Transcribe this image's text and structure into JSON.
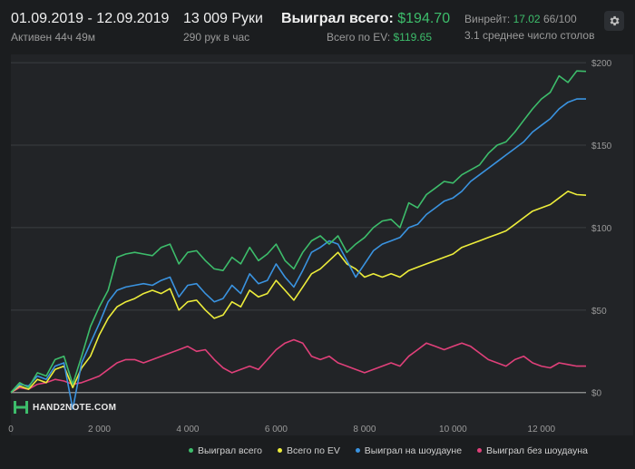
{
  "header": {
    "date_range": "01.09.2019 - 12.09.2019",
    "active_time": "Активен 44ч 49м",
    "hands": "13 009 Руки",
    "hands_per_hour": "290 рук в час",
    "won_total_label": "Выиграл всего:",
    "won_total_value": "$194.70",
    "ev_total_label": "Всего по EV:",
    "ev_total_value": "$119.65",
    "winrate_label": "Винрейт:",
    "winrate_value": "17.02",
    "winrate_hands": "66/100",
    "avg_tables": "3.1 среднее число столов"
  },
  "logo": {
    "text": "HAND2NOTE.COM"
  },
  "colors": {
    "green": "#3dbd6b",
    "yellow": "#eded3b",
    "blue": "#3a93e0",
    "pink": "#e0407a",
    "background": "#1b1d1f",
    "panel": "#222427"
  },
  "icons": {
    "settings": "gear-icon"
  },
  "chart_data": {
    "type": "line",
    "xlim": [
      0,
      13009
    ],
    "ylim": [
      -15,
      205
    ],
    "x_ticks": [
      0,
      2000,
      4000,
      6000,
      8000,
      10000,
      12000
    ],
    "x_tick_labels": [
      "0",
      "2 000",
      "4 000",
      "6 000",
      "8 000",
      "10 000",
      "12 000"
    ],
    "y_ticks": [
      0,
      50,
      100,
      150,
      200
    ],
    "y_tick_labels": [
      "$0",
      "$50",
      "$100",
      "$150",
      "$200"
    ],
    "grid": true,
    "legend_position": "bottom-right",
    "series": [
      {
        "name": "Выиграл всего",
        "color": "#3dbd6b",
        "points": [
          [
            0,
            0
          ],
          [
            200,
            6
          ],
          [
            400,
            3
          ],
          [
            600,
            12
          ],
          [
            800,
            10
          ],
          [
            1000,
            20
          ],
          [
            1200,
            22
          ],
          [
            1400,
            5
          ],
          [
            1600,
            22
          ],
          [
            1800,
            40
          ],
          [
            2000,
            52
          ],
          [
            2200,
            62
          ],
          [
            2400,
            82
          ],
          [
            2600,
            84
          ],
          [
            2800,
            85
          ],
          [
            3000,
            84
          ],
          [
            3200,
            83
          ],
          [
            3400,
            88
          ],
          [
            3600,
            90
          ],
          [
            3800,
            78
          ],
          [
            4000,
            85
          ],
          [
            4200,
            86
          ],
          [
            4400,
            80
          ],
          [
            4600,
            75
          ],
          [
            4800,
            74
          ],
          [
            5000,
            82
          ],
          [
            5200,
            78
          ],
          [
            5400,
            88
          ],
          [
            5600,
            80
          ],
          [
            5800,
            84
          ],
          [
            6000,
            90
          ],
          [
            6200,
            80
          ],
          [
            6400,
            75
          ],
          [
            6600,
            85
          ],
          [
            6800,
            92
          ],
          [
            7000,
            95
          ],
          [
            7200,
            90
          ],
          [
            7400,
            95
          ],
          [
            7600,
            85
          ],
          [
            7800,
            90
          ],
          [
            8000,
            94
          ],
          [
            8200,
            100
          ],
          [
            8400,
            104
          ],
          [
            8600,
            105
          ],
          [
            8800,
            100
          ],
          [
            9000,
            115
          ],
          [
            9200,
            112
          ],
          [
            9400,
            120
          ],
          [
            9600,
            124
          ],
          [
            9800,
            128
          ],
          [
            10000,
            127
          ],
          [
            10200,
            132
          ],
          [
            10400,
            135
          ],
          [
            10600,
            138
          ],
          [
            10800,
            145
          ],
          [
            11000,
            150
          ],
          [
            11200,
            152
          ],
          [
            11400,
            158
          ],
          [
            11600,
            165
          ],
          [
            11800,
            172
          ],
          [
            12000,
            178
          ],
          [
            12200,
            182
          ],
          [
            12400,
            192
          ],
          [
            12600,
            188
          ],
          [
            12800,
            195
          ],
          [
            13009,
            194.7
          ]
        ]
      },
      {
        "name": "Всего по EV",
        "color": "#eded3b",
        "points": [
          [
            0,
            0
          ],
          [
            200,
            4
          ],
          [
            400,
            2
          ],
          [
            600,
            8
          ],
          [
            800,
            6
          ],
          [
            1000,
            14
          ],
          [
            1200,
            16
          ],
          [
            1400,
            3
          ],
          [
            1600,
            15
          ],
          [
            1800,
            22
          ],
          [
            2000,
            35
          ],
          [
            2200,
            45
          ],
          [
            2400,
            52
          ],
          [
            2600,
            55
          ],
          [
            2800,
            57
          ],
          [
            3000,
            60
          ],
          [
            3200,
            62
          ],
          [
            3400,
            60
          ],
          [
            3600,
            63
          ],
          [
            3800,
            50
          ],
          [
            4000,
            55
          ],
          [
            4200,
            56
          ],
          [
            4400,
            50
          ],
          [
            4600,
            45
          ],
          [
            4800,
            47
          ],
          [
            5000,
            55
          ],
          [
            5200,
            52
          ],
          [
            5400,
            62
          ],
          [
            5600,
            58
          ],
          [
            5800,
            60
          ],
          [
            6000,
            68
          ],
          [
            6200,
            62
          ],
          [
            6400,
            56
          ],
          [
            6600,
            64
          ],
          [
            6800,
            72
          ],
          [
            7000,
            75
          ],
          [
            7200,
            80
          ],
          [
            7400,
            85
          ],
          [
            7600,
            78
          ],
          [
            7800,
            75
          ],
          [
            8000,
            70
          ],
          [
            8200,
            72
          ],
          [
            8400,
            70
          ],
          [
            8600,
            72
          ],
          [
            8800,
            70
          ],
          [
            9000,
            74
          ],
          [
            9200,
            76
          ],
          [
            9400,
            78
          ],
          [
            9600,
            80
          ],
          [
            9800,
            82
          ],
          [
            10000,
            84
          ],
          [
            10200,
            88
          ],
          [
            10400,
            90
          ],
          [
            10600,
            92
          ],
          [
            10800,
            94
          ],
          [
            11000,
            96
          ],
          [
            11200,
            98
          ],
          [
            11400,
            102
          ],
          [
            11600,
            106
          ],
          [
            11800,
            110
          ],
          [
            12000,
            112
          ],
          [
            12200,
            114
          ],
          [
            12400,
            118
          ],
          [
            12600,
            122
          ],
          [
            12800,
            120
          ],
          [
            13009,
            119.65
          ]
        ]
      },
      {
        "name": "Выиграл на шоудауне",
        "color": "#3a93e0",
        "points": [
          [
            0,
            0
          ],
          [
            200,
            5
          ],
          [
            400,
            4
          ],
          [
            600,
            10
          ],
          [
            800,
            8
          ],
          [
            1000,
            16
          ],
          [
            1200,
            18
          ],
          [
            1400,
            -10
          ],
          [
            1600,
            18
          ],
          [
            1800,
            30
          ],
          [
            2000,
            42
          ],
          [
            2200,
            55
          ],
          [
            2400,
            62
          ],
          [
            2600,
            64
          ],
          [
            2800,
            65
          ],
          [
            3000,
            66
          ],
          [
            3200,
            65
          ],
          [
            3400,
            68
          ],
          [
            3600,
            70
          ],
          [
            3800,
            58
          ],
          [
            4000,
            65
          ],
          [
            4200,
            66
          ],
          [
            4400,
            60
          ],
          [
            4600,
            55
          ],
          [
            4800,
            57
          ],
          [
            5000,
            65
          ],
          [
            5200,
            60
          ],
          [
            5400,
            72
          ],
          [
            5600,
            66
          ],
          [
            5800,
            68
          ],
          [
            6000,
            78
          ],
          [
            6200,
            70
          ],
          [
            6400,
            64
          ],
          [
            6600,
            74
          ],
          [
            6800,
            85
          ],
          [
            7000,
            88
          ],
          [
            7200,
            92
          ],
          [
            7400,
            90
          ],
          [
            7600,
            80
          ],
          [
            7800,
            70
          ],
          [
            8000,
            78
          ],
          [
            8200,
            86
          ],
          [
            8400,
            90
          ],
          [
            8600,
            92
          ],
          [
            8800,
            94
          ],
          [
            9000,
            100
          ],
          [
            9200,
            102
          ],
          [
            9400,
            108
          ],
          [
            9600,
            112
          ],
          [
            9800,
            116
          ],
          [
            10000,
            118
          ],
          [
            10200,
            122
          ],
          [
            10400,
            128
          ],
          [
            10600,
            132
          ],
          [
            10800,
            136
          ],
          [
            11000,
            140
          ],
          [
            11200,
            144
          ],
          [
            11400,
            148
          ],
          [
            11600,
            152
          ],
          [
            11800,
            158
          ],
          [
            12000,
            162
          ],
          [
            12200,
            166
          ],
          [
            12400,
            172
          ],
          [
            12600,
            176
          ],
          [
            12800,
            178
          ],
          [
            13009,
            178
          ]
        ]
      },
      {
        "name": "Выиграл без шоудауна",
        "color": "#e0407a",
        "points": [
          [
            0,
            0
          ],
          [
            200,
            3
          ],
          [
            400,
            2
          ],
          [
            600,
            5
          ],
          [
            800,
            6
          ],
          [
            1000,
            8
          ],
          [
            1200,
            7
          ],
          [
            1400,
            5
          ],
          [
            1600,
            6
          ],
          [
            1800,
            8
          ],
          [
            2000,
            10
          ],
          [
            2200,
            14
          ],
          [
            2400,
            18
          ],
          [
            2600,
            20
          ],
          [
            2800,
            20
          ],
          [
            3000,
            18
          ],
          [
            3200,
            20
          ],
          [
            3400,
            22
          ],
          [
            3600,
            24
          ],
          [
            3800,
            26
          ],
          [
            4000,
            28
          ],
          [
            4200,
            25
          ],
          [
            4400,
            26
          ],
          [
            4600,
            20
          ],
          [
            4800,
            15
          ],
          [
            5000,
            12
          ],
          [
            5200,
            14
          ],
          [
            5400,
            16
          ],
          [
            5600,
            14
          ],
          [
            5800,
            20
          ],
          [
            6000,
            26
          ],
          [
            6200,
            30
          ],
          [
            6400,
            32
          ],
          [
            6600,
            30
          ],
          [
            6800,
            22
          ],
          [
            7000,
            20
          ],
          [
            7200,
            22
          ],
          [
            7400,
            18
          ],
          [
            7600,
            16
          ],
          [
            7800,
            14
          ],
          [
            8000,
            12
          ],
          [
            8200,
            14
          ],
          [
            8400,
            16
          ],
          [
            8600,
            18
          ],
          [
            8800,
            16
          ],
          [
            9000,
            22
          ],
          [
            9200,
            26
          ],
          [
            9400,
            30
          ],
          [
            9600,
            28
          ],
          [
            9800,
            26
          ],
          [
            10000,
            28
          ],
          [
            10200,
            30
          ],
          [
            10400,
            28
          ],
          [
            10600,
            24
          ],
          [
            10800,
            20
          ],
          [
            11000,
            18
          ],
          [
            11200,
            16
          ],
          [
            11400,
            20
          ],
          [
            11600,
            22
          ],
          [
            11800,
            18
          ],
          [
            12000,
            16
          ],
          [
            12200,
            15
          ],
          [
            12400,
            18
          ],
          [
            12600,
            17
          ],
          [
            12800,
            16
          ],
          [
            13009,
            16
          ]
        ]
      }
    ]
  }
}
